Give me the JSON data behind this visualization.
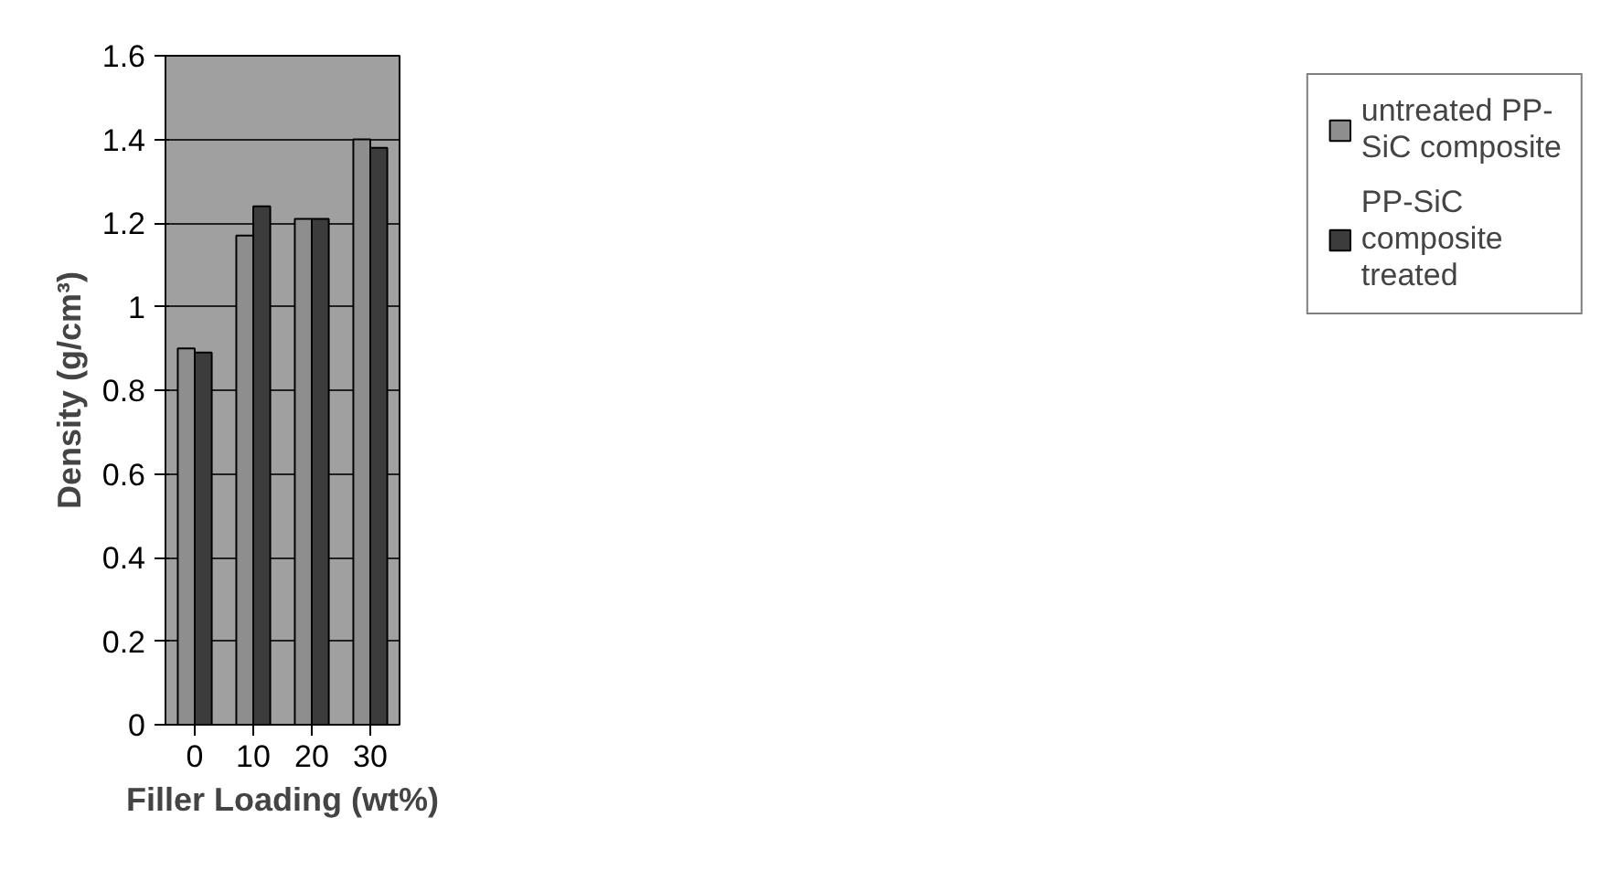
{
  "chart_data": {
    "type": "bar",
    "xlabel": "Filler Loading (wt%)",
    "ylabel": "Density (g/cm³)",
    "categories": [
      "0",
      "10",
      "20",
      "30"
    ],
    "series": [
      {
        "name": "untreated PP-SiC composite",
        "color": "#8e8e8e",
        "values": [
          0.9,
          1.17,
          1.21,
          1.4
        ]
      },
      {
        "name": "PP-SiC composite treated",
        "color": "#3c3c3c",
        "values": [
          0.89,
          1.24,
          1.21,
          1.38
        ]
      }
    ],
    "ylim": [
      0,
      1.6
    ],
    "yticks": [
      0,
      {
        "value": 0.2,
        "label": "0.2"
      },
      {
        "value": 0.4,
        "label": "0.4"
      },
      {
        "value": 0.6,
        "label": "0.6"
      },
      {
        "value": 0.8,
        "label": "0.8"
      },
      1,
      {
        "value": 1.2,
        "label": "1.2"
      },
      {
        "value": 1.4,
        "label": "1.4"
      },
      {
        "value": 1.6,
        "label": "1.6"
      }
    ],
    "grid": "y",
    "legend": "right"
  }
}
